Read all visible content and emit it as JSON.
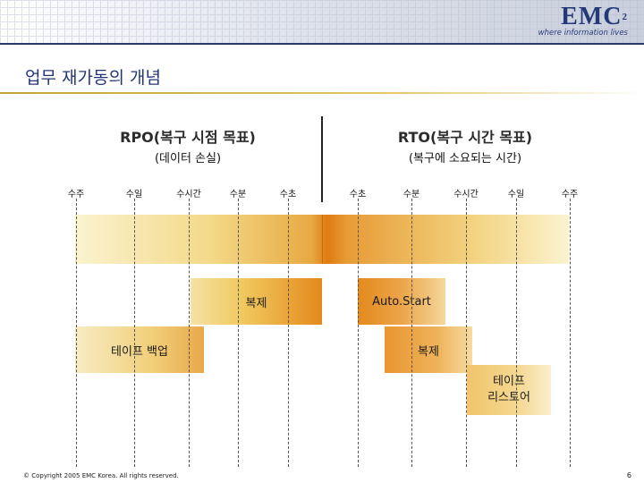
{
  "header": {
    "logo_text": "EMC",
    "logo_superscript": "2",
    "logo_tagline": "where information lives"
  },
  "slide": {
    "title": "업무 재가동의 개념"
  },
  "rpo": {
    "heading": "RPO(복구 시점 목표)",
    "subheading": "(데이터 손실)",
    "ticks": [
      "수주",
      "수일",
      "수시간",
      "수분",
      "수초"
    ]
  },
  "rto": {
    "heading": "RTO(복구 시간 목표)",
    "subheading": "(복구에 소요되는 시간)",
    "ticks": [
      "수초",
      "수분",
      "수시간",
      "수일",
      "수주"
    ]
  },
  "boxes": {
    "replication_left": "복제",
    "autostart": "Auto.Start",
    "tape_backup": "테이프 백업",
    "replication_right": "복제",
    "tape_restore_line1": "테이프",
    "tape_restore_line2": "리스토어"
  },
  "colors": {
    "brand": "#243a78",
    "accent_orange": "#e07a12",
    "accent_gold": "#c7a23a"
  },
  "footer": {
    "copyright": "© Copyright 2005 EMC Korea. All rights reserved.",
    "page_number": "6"
  }
}
